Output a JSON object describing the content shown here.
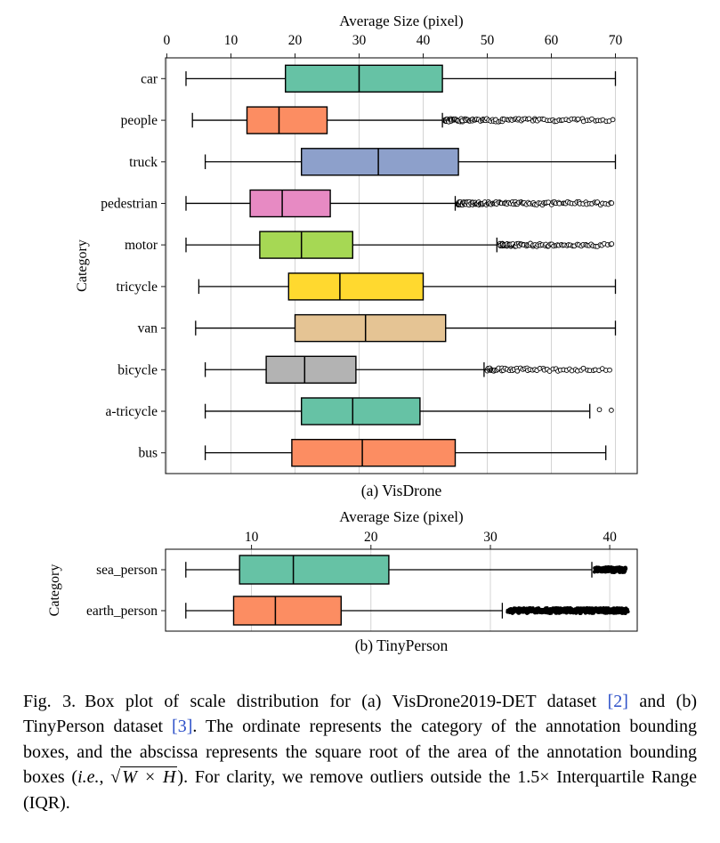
{
  "caption": {
    "fig_label": "Fig. 3.",
    "part1": "Box plot of scale distribution for (a) VisDrone2019-DET dataset ",
    "cite_a": "[2]",
    "part2": " and (b) TinyPerson dataset ",
    "cite_b": "[3]",
    "part3": ". The ordinate represents the category of the annotation bounding boxes, and the abscissa represents the square root of the area of the annotation bounding boxes (",
    "ie": "i.e.",
    "part4": ", ",
    "radical": "√",
    "sqrt_radicand": "W × H",
    "part5": "). For clarity, we remove outliers outside the 1.5× Interquartile Range (IQR).",
    "cite_color": "#2d50c8"
  },
  "chart_data": [
    {
      "id": "chart-a",
      "type": "boxplot",
      "orientation": "horizontal",
      "title": "Average Size (pixel)",
      "ylabel": "Category",
      "caption": "(a) VisDrone",
      "xlim": [
        -0.2,
        73.4
      ],
      "xticks": [
        0,
        10,
        20,
        30,
        40,
        50,
        60,
        70
      ],
      "grid": true,
      "categories": [
        "car",
        "people",
        "truck",
        "pedestrian",
        "motor",
        "tricycle",
        "van",
        "bicycle",
        "a-tricycle",
        "bus"
      ],
      "series": [
        {
          "category": "car",
          "color": "#66c2a5",
          "whisker_low": 3,
          "q1": 18.5,
          "median": 30,
          "q3": 43,
          "whisker_high": 70
        },
        {
          "category": "people",
          "color": "#fc8d62",
          "whisker_low": 4,
          "q1": 12.5,
          "median": 17.5,
          "q3": 25,
          "whisker_high": 43,
          "outliers": {
            "style": "hollow",
            "from": 43.5,
            "to": 69.5,
            "count": 115,
            "taper": 2
          }
        },
        {
          "category": "truck",
          "color": "#8da0cb",
          "whisker_low": 6,
          "q1": 21,
          "median": 33,
          "q3": 45.5,
          "whisker_high": 70
        },
        {
          "category": "pedestrian",
          "color": "#e78ac3",
          "whisker_low": 3,
          "q1": 13,
          "median": 18,
          "q3": 25.5,
          "whisker_high": 45,
          "outliers": {
            "style": "hollow",
            "from": 45.5,
            "to": 69.5,
            "count": 130,
            "taper": 2
          }
        },
        {
          "category": "motor",
          "color": "#a6d854",
          "whisker_low": 3,
          "q1": 14.5,
          "median": 21,
          "q3": 29,
          "whisker_high": 51.5,
          "outliers": {
            "style": "hollow",
            "from": 52,
            "to": 69.5,
            "count": 85,
            "taper": 1.8
          }
        },
        {
          "category": "tricycle",
          "color": "#ffd92f",
          "whisker_low": 5,
          "q1": 19,
          "median": 27,
          "q3": 40,
          "whisker_high": 70
        },
        {
          "category": "van",
          "color": "#e5c494",
          "whisker_low": 4.5,
          "q1": 20,
          "median": 31,
          "q3": 43.5,
          "whisker_high": 70
        },
        {
          "category": "bicycle",
          "color": "#b3b3b3",
          "whisker_low": 6,
          "q1": 15.5,
          "median": 21.5,
          "q3": 29.5,
          "whisker_high": 49.5,
          "outliers": {
            "style": "hollow",
            "from": 50,
            "to": 69,
            "count": 60,
            "taper": 1.6
          }
        },
        {
          "category": "a-tricycle",
          "color": "#66c2a5",
          "whisker_low": 6,
          "q1": 21,
          "median": 29,
          "q3": 39.5,
          "whisker_high": 66,
          "outliers": {
            "style": "hollow",
            "points": [
              67.5,
              69.5
            ]
          }
        },
        {
          "category": "bus",
          "color": "#fc8d62",
          "whisker_low": 6,
          "q1": 19.5,
          "median": 30.5,
          "q3": 45,
          "whisker_high": 68.5
        }
      ]
    },
    {
      "id": "chart-b",
      "type": "boxplot",
      "orientation": "horizontal",
      "title": "Average Size (pixel)",
      "ylabel": "Category",
      "caption": "(b) TinyPerson",
      "xlim": [
        2.8,
        42.3
      ],
      "xticks": [
        10,
        20,
        30,
        40
      ],
      "grid": true,
      "categories": [
        "sea_person",
        "earth_person"
      ],
      "series": [
        {
          "category": "sea_person",
          "color": "#66c2a5",
          "whisker_low": 4.5,
          "q1": 9,
          "median": 13.5,
          "q3": 21.5,
          "whisker_high": 38.5,
          "outliers": {
            "style": "filled",
            "from": 38.8,
            "to": 41.3,
            "count": 160,
            "taper": 1
          }
        },
        {
          "category": "earth_person",
          "color": "#fc8d62",
          "whisker_low": 4.5,
          "q1": 8.5,
          "median": 12,
          "q3": 17.5,
          "whisker_high": 31,
          "outliers": {
            "style": "filled",
            "from": 31.5,
            "to": 41.5,
            "count": 420,
            "taper": 1
          }
        }
      ]
    }
  ]
}
